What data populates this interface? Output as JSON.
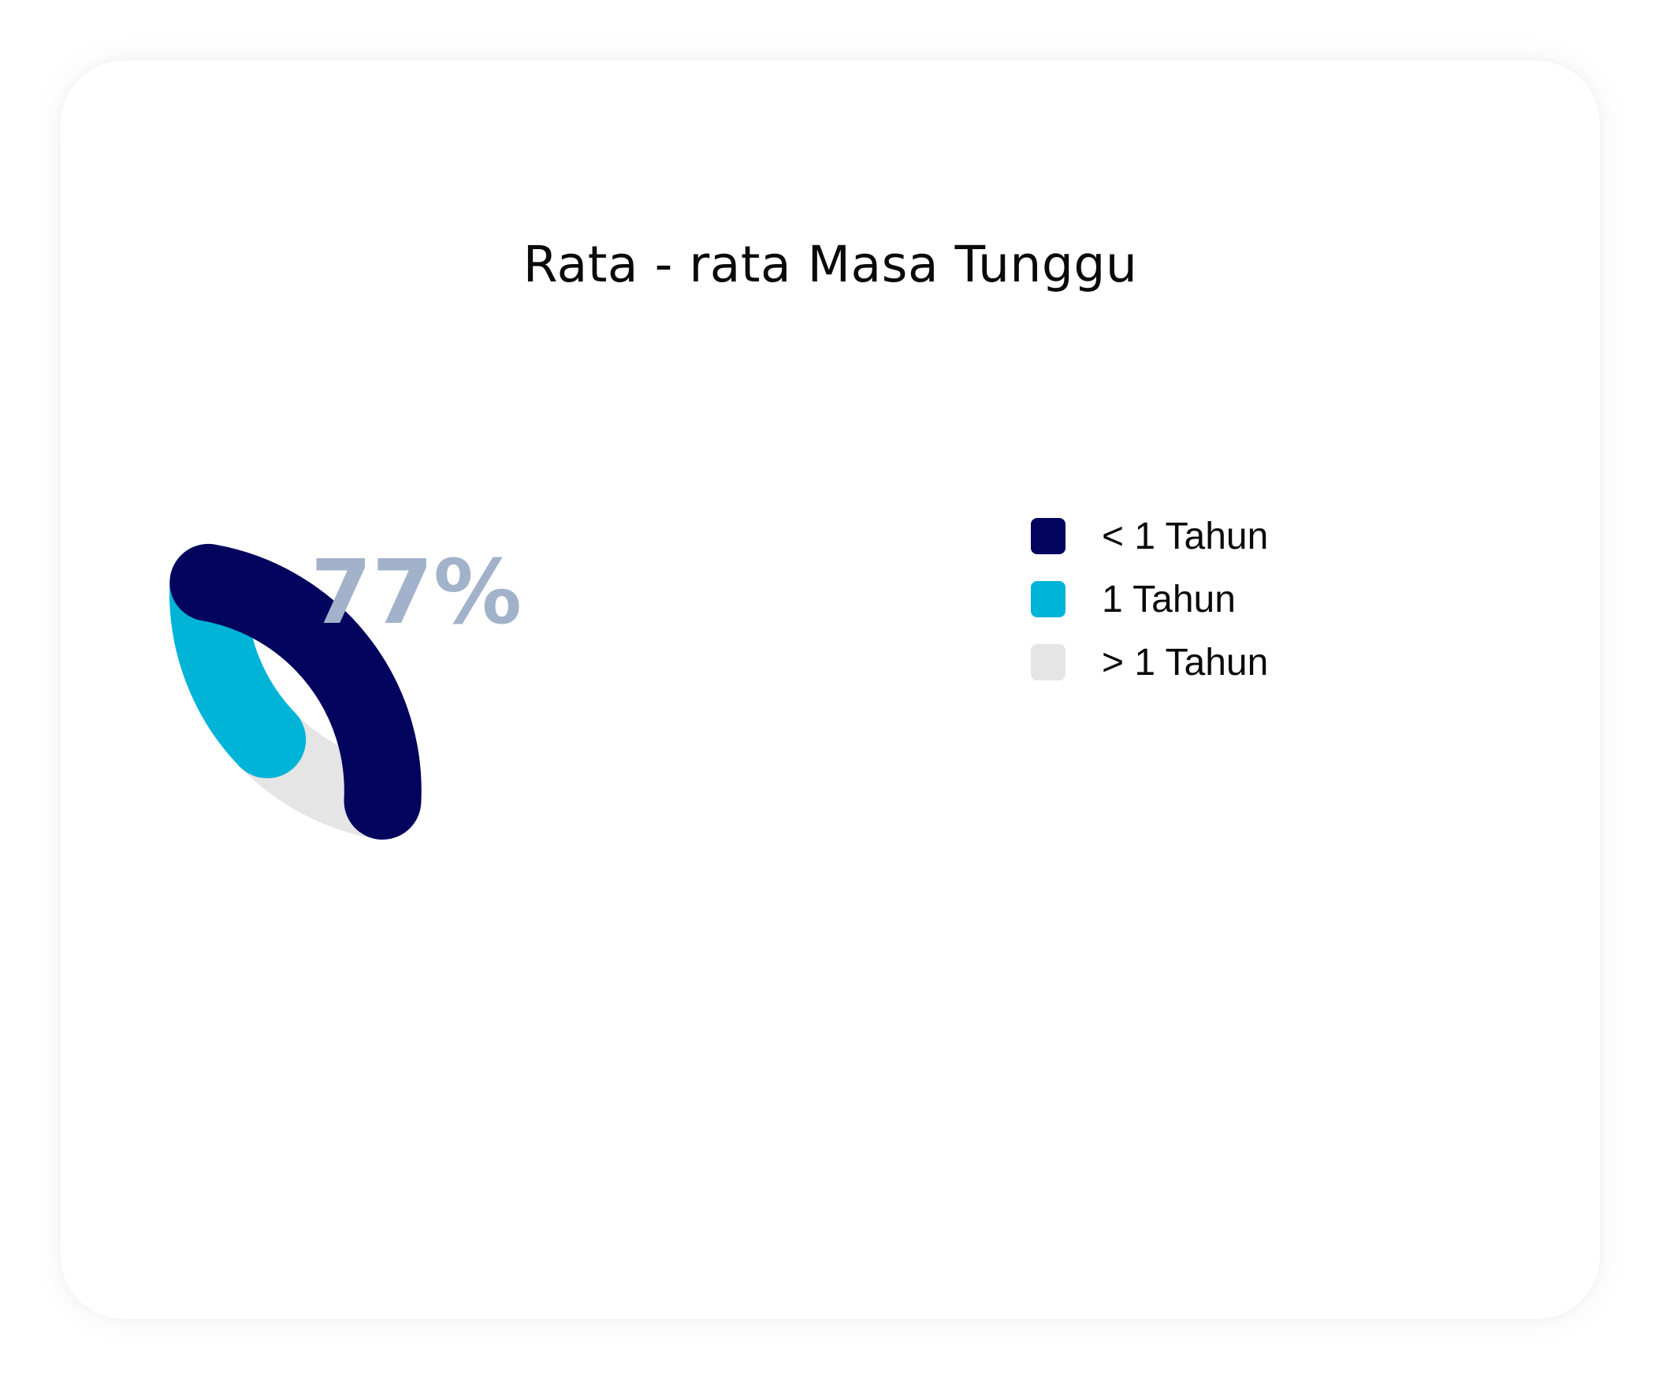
{
  "chart_data": {
    "type": "pie",
    "title": "Rata - rata Masa Tunggu",
    "center_label": "77%",
    "categories": [
      "< 1 Tahun",
      "1 Tahun",
      "> 1 Tahun"
    ],
    "values": [
      77,
      13,
      10
    ],
    "colors": [
      "#03045e",
      "#00b4d8",
      "#e5e5e5"
    ],
    "legend_position": "right"
  }
}
